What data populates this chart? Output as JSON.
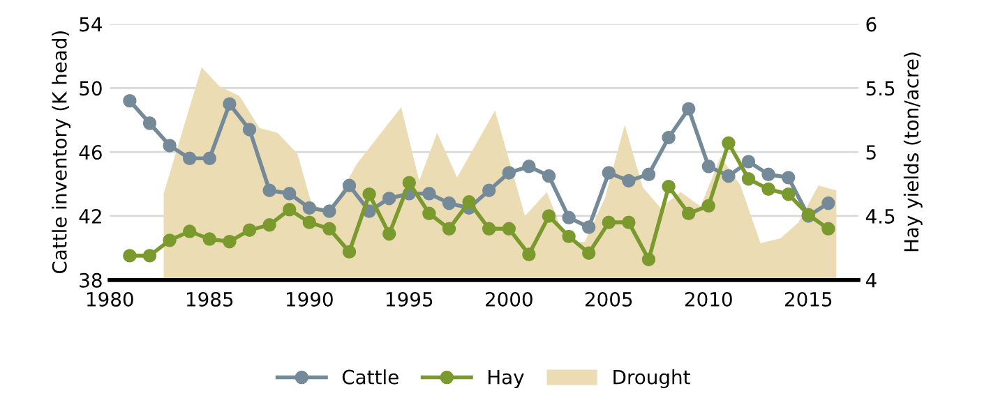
{
  "chart_data": {
    "type": "line",
    "ylabel": "Cattle inventory (K head)",
    "y2label": "Hay yields (ton/acre)",
    "x": [
      1981,
      1982,
      1983,
      1984,
      1985,
      1986,
      1987,
      1988,
      1989,
      1990,
      1991,
      1992,
      1993,
      1994,
      1995,
      1996,
      1997,
      1998,
      1999,
      2000,
      2001,
      2002,
      2003,
      2004,
      2005,
      2006,
      2007,
      2008,
      2009,
      2010,
      2011,
      2012,
      2013,
      2014,
      2015,
      2016
    ],
    "series": [
      {
        "name": "Drought",
        "type": "area",
        "marker": "none",
        "axis": "y",
        "color": "#ecdcb4",
        "x": [
          1982.7,
          1982.7,
          1984.6,
          1985.5,
          1986.5,
          1987.5,
          1988.4,
          1989.4,
          1990.1,
          1991.0,
          1992.4,
          1994.6,
          1995.5,
          1996.4,
          1997.4,
          1999.3,
          2000.8,
          2001.9,
          2002.9,
          2003.8,
          2004.8,
          2005.8,
          2006.7,
          2007.6,
          2008.6,
          2009.6,
          2010.6,
          2011.6,
          2012.6,
          2013.6,
          2014.5,
          2015.5,
          2016.4,
          2016.4
        ],
        "values": [
          38,
          43.4,
          51.3,
          50.1,
          49.5,
          47.5,
          47.2,
          45.9,
          42.8,
          42.2,
          45.3,
          48.8,
          44.2,
          47.2,
          44.4,
          48.6,
          42.0,
          43.5,
          40.3,
          40.4,
          43.1,
          47.7,
          43.8,
          42.5,
          43.5,
          42.6,
          45.7,
          43.9,
          40.3,
          40.6,
          41.6,
          43.9,
          43.6,
          38
        ]
      },
      {
        "name": "Cattle",
        "axis": "y",
        "color": "#758a99",
        "values": [
          49.2,
          47.8,
          46.4,
          45.6,
          45.6,
          49.0,
          47.4,
          43.6,
          43.4,
          42.5,
          42.3,
          43.9,
          42.3,
          43.1,
          43.4,
          43.4,
          42.8,
          42.5,
          43.6,
          44.7,
          45.1,
          44.5,
          41.9,
          41.3,
          44.7,
          44.2,
          44.6,
          46.9,
          48.7,
          45.1,
          44.5,
          45.4,
          44.6,
          44.4,
          42.0,
          42.8
        ]
      },
      {
        "name": "Hay",
        "axis": "y2",
        "color": "#7a9a2e",
        "values": [
          4.19,
          4.19,
          4.31,
          4.38,
          4.32,
          4.3,
          4.39,
          4.43,
          4.55,
          4.45,
          4.4,
          4.22,
          4.67,
          4.36,
          4.76,
          4.52,
          4.4,
          4.61,
          4.4,
          4.4,
          4.2,
          4.5,
          4.34,
          4.21,
          4.45,
          4.45,
          4.16,
          4.73,
          4.52,
          4.58,
          5.07,
          4.79,
          4.71,
          4.67,
          4.51,
          4.4
        ]
      }
    ],
    "xlim": [
      1980,
      2017.5
    ],
    "xticks": [
      1980,
      1985,
      1990,
      1995,
      2000,
      2005,
      2010,
      2015
    ],
    "ylim": [
      38,
      54
    ],
    "yticks": [
      38,
      42,
      46,
      50,
      54
    ],
    "y2lim": [
      4,
      6
    ],
    "y2ticks": [
      4,
      4.5,
      5,
      5.5,
      6
    ],
    "grid": "y",
    "legend": "bottom",
    "marker": "circle",
    "line_style": "solid"
  }
}
